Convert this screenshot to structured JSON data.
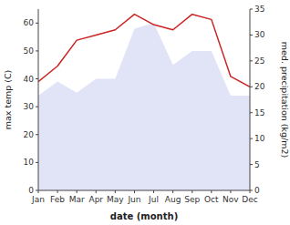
{
  "chart_data": {
    "type": "line",
    "xlabel": "date (month)",
    "ylabel": "max temp (C)",
    "y2label": "med. precipitation (kg/m2)",
    "categories": [
      "Jan",
      "Feb",
      "Mar",
      "Apr",
      "May",
      "Jun",
      "Jul",
      "Aug",
      "Sep",
      "Oct",
      "Nov",
      "Dec"
    ],
    "series": [
      {
        "type": "area",
        "color": "#c8ccee",
        "values": [
          34,
          39,
          35,
          40,
          40,
          58,
          60,
          45,
          50,
          50,
          34,
          34
        ]
      },
      {
        "type": "line",
        "color": "#cc2222",
        "axis": "y2",
        "values": [
          21,
          24,
          29,
          30,
          31,
          34,
          32,
          31,
          34,
          33,
          22,
          20
        ]
      }
    ],
    "ylim": [
      0,
      65
    ],
    "yticks": [
      0,
      10,
      20,
      30,
      40,
      50,
      60
    ],
    "y2lim": [
      0,
      35
    ],
    "y2ticks": [
      0,
      5,
      10,
      15,
      20,
      25,
      30,
      35
    ],
    "grid": false
  }
}
